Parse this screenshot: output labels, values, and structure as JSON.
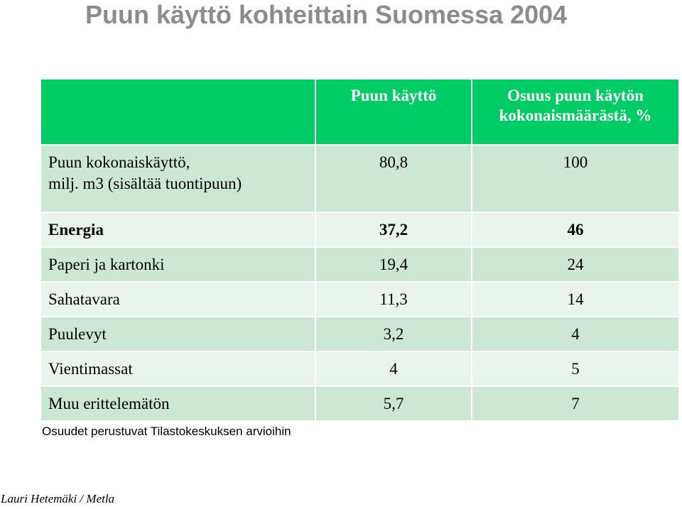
{
  "title": "Puun käyttö kohteittain Suomessa 2004",
  "table": {
    "headers": {
      "usage": "Puun käyttö",
      "share_line1": "Osuus puun käytön",
      "share_line2": "kokonaismäärästä, %"
    },
    "total": {
      "label_line1": "Puun kokonaiskäyttö,",
      "label_line2": "milj. m3 (sisältää tuontipuun)",
      "usage": "80,8",
      "share": "100"
    },
    "rows": [
      {
        "label": "Energia",
        "usage": "37,2",
        "share": "46",
        "bold": true
      },
      {
        "label": "Paperi ja kartonki",
        "usage": "19,4",
        "share": "24"
      },
      {
        "label": "Sahatavara",
        "usage": "11,3",
        "share": "14"
      },
      {
        "label": "Puulevyt",
        "usage": "3,2",
        "share": "4"
      },
      {
        "label": "Vientimassat",
        "usage": "4",
        "share": "5"
      },
      {
        "label": "Muu erittelemätön",
        "usage": "5,7",
        "share": "7"
      }
    ]
  },
  "colors": {
    "header_bg": "#00cc66",
    "row_light": "#e8f4ec",
    "row_dark": "#cce8d4",
    "title_color": "#8c8c8c"
  },
  "footnote": "Osuudet perustuvat Tilastokeskuksen arvioihin",
  "author": "Lauri Hetemäki / Metla"
}
